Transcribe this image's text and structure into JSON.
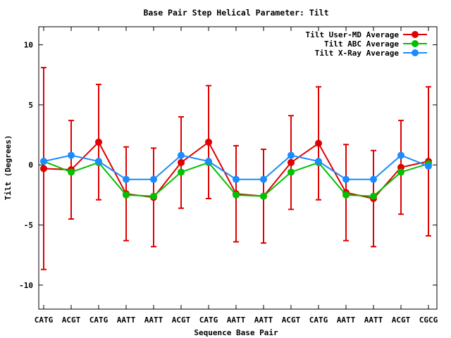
{
  "chart_data": {
    "type": "line",
    "title": "Base Pair Step Helical Parameter: Tilt",
    "xlabel": "Sequence Base Pair",
    "ylabel": "Tilt (Degrees)",
    "ylim": [
      -12,
      11.5
    ],
    "yticks": [
      10,
      5,
      0,
      -5,
      -10
    ],
    "categories": [
      "CATG",
      "ACGT",
      "CATG",
      "AATT",
      "AATT",
      "ACGT",
      "CATG",
      "AATT",
      "AATT",
      "ACGT",
      "CATG",
      "AATT",
      "AATT",
      "ACGT",
      "CGCG"
    ],
    "grid": false,
    "legend_position": "top-right",
    "series": [
      {
        "name": "Tilt User-MD Average",
        "color": "#e00000",
        "values": [
          -0.3,
          -0.4,
          1.9,
          -2.4,
          -2.7,
          0.2,
          1.9,
          -2.4,
          -2.6,
          0.2,
          1.8,
          -2.3,
          -2.8,
          -0.2,
          0.3
        ],
        "errors": [
          8.4,
          4.1,
          4.8,
          3.9,
          4.1,
          3.8,
          4.7,
          4.0,
          3.9,
          3.9,
          4.7,
          4.0,
          4.0,
          3.9,
          6.2
        ]
      },
      {
        "name": "Tilt ABC Average",
        "color": "#00c000",
        "values": [
          0.3,
          -0.6,
          0.2,
          -2.5,
          -2.6,
          -0.6,
          0.2,
          -2.5,
          -2.6,
          -0.6,
          0.2,
          -2.5,
          -2.6,
          -0.6,
          0.1
        ]
      },
      {
        "name": "Tilt X-Ray Average",
        "color": "#1a8cff",
        "values": [
          0.3,
          0.8,
          0.3,
          -1.2,
          -1.2,
          0.8,
          0.3,
          -1.2,
          -1.2,
          0.8,
          0.3,
          -1.2,
          -1.2,
          0.8,
          -0.1
        ]
      }
    ]
  }
}
